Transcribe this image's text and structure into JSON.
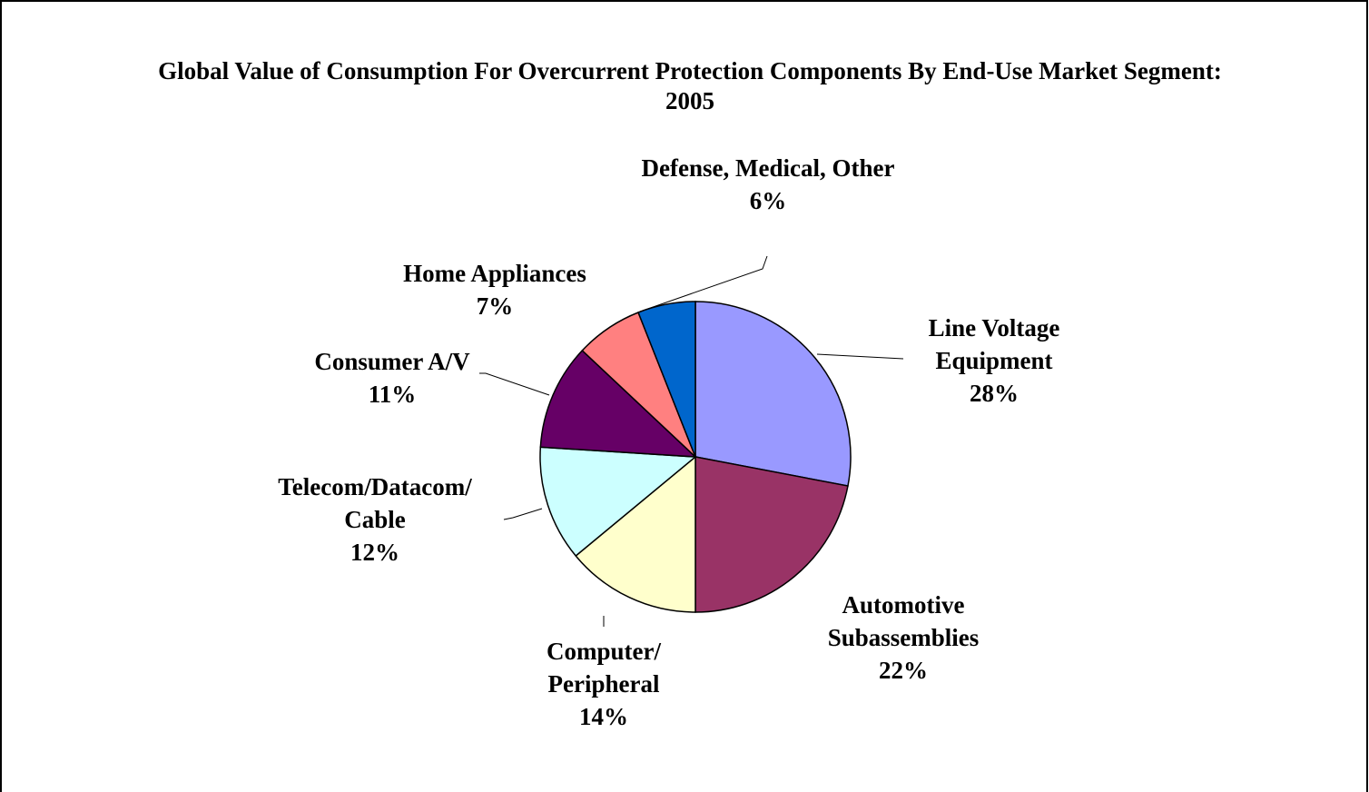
{
  "chart_data": {
    "type": "pie",
    "title": "Global Value of Consumption For Overcurrent Protection Components By End-Use Market Segment: 2005",
    "categories": [
      "Line Voltage Equipment",
      "Automotive Subassemblies",
      "Computer/ Peripheral",
      "Telecom/Datacom/ Cable",
      "Consumer A/V",
      "Home Appliances",
      "Defense, Medical, Other"
    ],
    "values": [
      28,
      22,
      14,
      12,
      11,
      7,
      6
    ],
    "value_labels": [
      "28%",
      "22%",
      "14%",
      "12%",
      "11%",
      "7%",
      "6%"
    ],
    "colors": [
      "#9999ff",
      "#993366",
      "#ffffcc",
      "#ccffff",
      "#660066",
      "#ff8080",
      "#0066cc"
    ]
  }
}
